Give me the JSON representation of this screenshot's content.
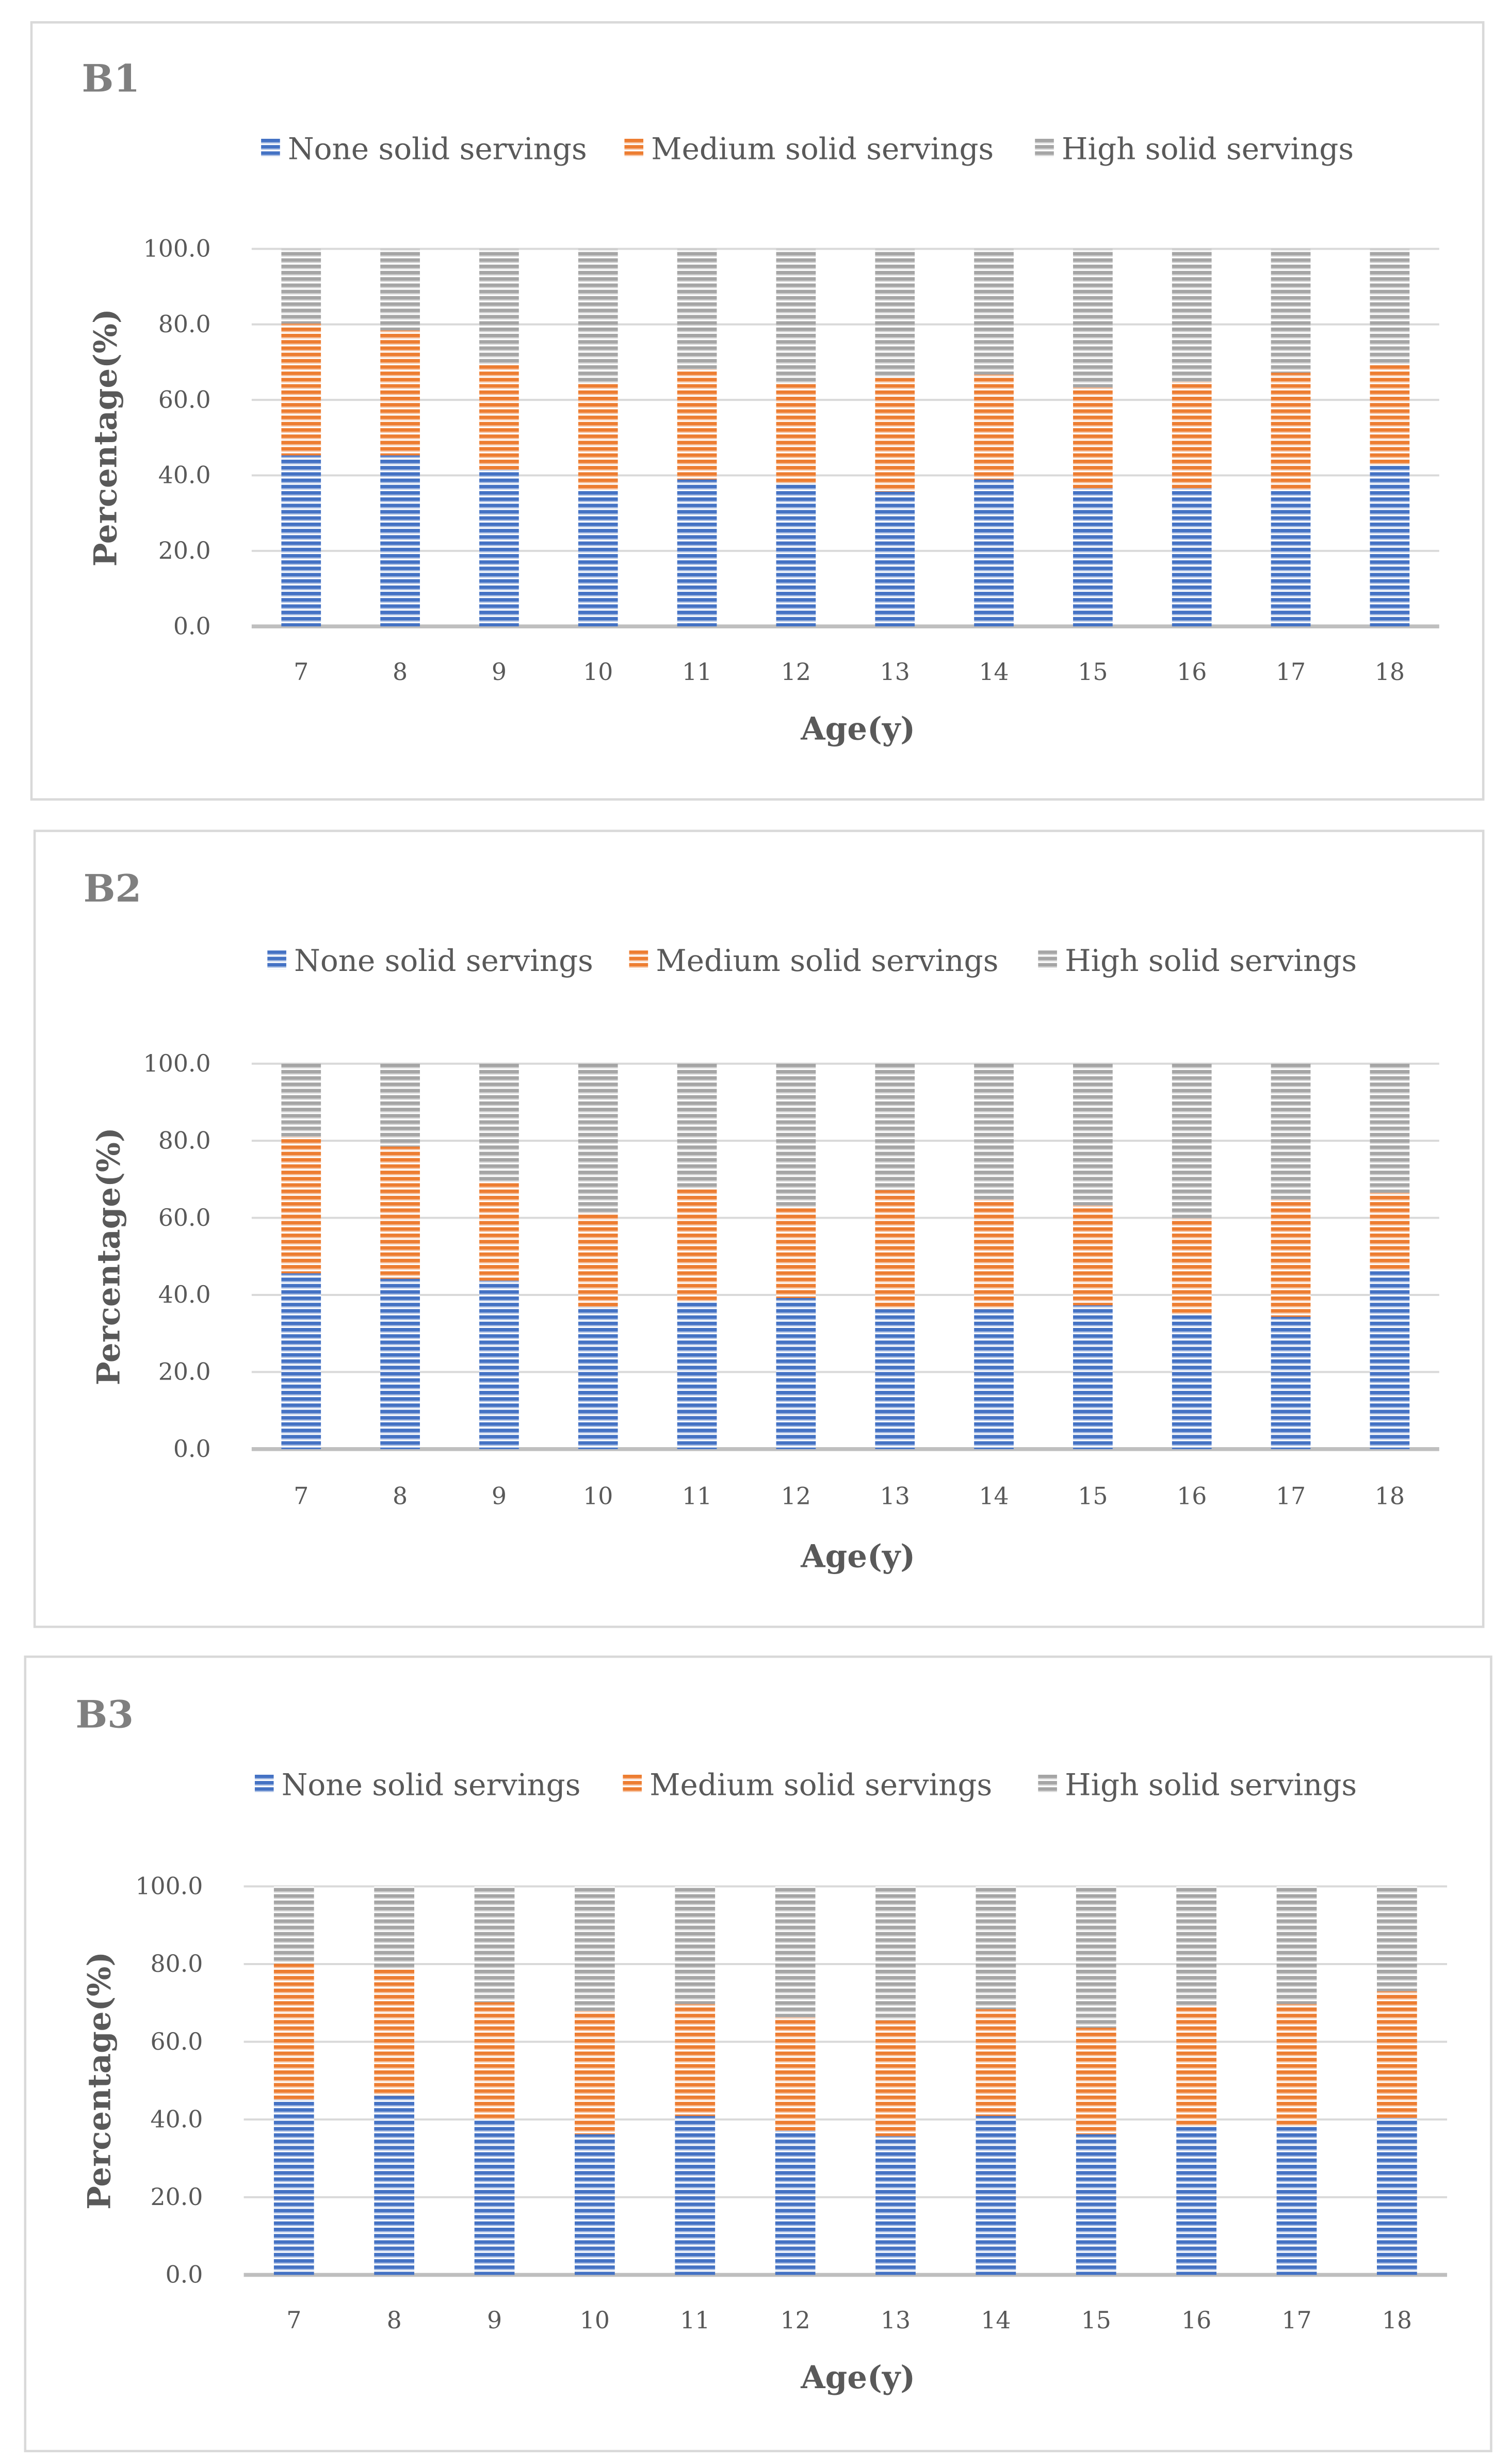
{
  "chart_data": [
    {
      "type": "bar",
      "stacked": true,
      "title": "B1",
      "xlabel": "Age(y)",
      "ylabel": "Percentage(%)",
      "ylim": [
        0,
        100
      ],
      "yticks": [
        "0.0",
        "20.0",
        "40.0",
        "60.0",
        "80.0",
        "100.0"
      ],
      "grid": true,
      "legend": "top",
      "categories": [
        "7",
        "8",
        "9",
        "10",
        "11",
        "12",
        "13",
        "14",
        "15",
        "16",
        "17",
        "18"
      ],
      "series": [
        {
          "name": "None solid servings",
          "color": "#4472c4",
          "values": [
            45.3,
            45.3,
            41.5,
            36.1,
            38.9,
            38.0,
            35.7,
            38.9,
            36.6,
            36.6,
            36.1,
            42.9
          ]
        },
        {
          "name": "Medium solid servings",
          "color": "#ed7d31",
          "values": [
            34.9,
            33.1,
            28.0,
            28.2,
            29.2,
            26.3,
            30.1,
            27.8,
            26.7,
            28.2,
            31.1,
            26.6
          ]
        },
        {
          "name": "High solid servings",
          "color": "#a5a5a5",
          "values": [
            19.8,
            21.6,
            30.5,
            35.7,
            31.9,
            35.7,
            34.2,
            33.3,
            36.7,
            35.2,
            32.8,
            30.5
          ]
        }
      ]
    },
    {
      "type": "bar",
      "stacked": true,
      "title": "B2",
      "xlabel": "Age(y)",
      "ylabel": "Percentage(%)",
      "ylim": [
        0,
        100
      ],
      "yticks": [
        "0.0",
        "20.0",
        "40.0",
        "60.0",
        "80.0",
        "100.0"
      ],
      "grid": true,
      "legend": "top",
      "categories": [
        "7",
        "8",
        "9",
        "10",
        "11",
        "12",
        "13",
        "14",
        "15",
        "16",
        "17",
        "18"
      ],
      "series": [
        {
          "name": "None solid servings",
          "color": "#4472c4",
          "values": [
            45.6,
            44.2,
            43.7,
            36.9,
            38.3,
            39.2,
            36.3,
            36.3,
            37.3,
            34.9,
            34.3,
            46.6
          ]
        },
        {
          "name": "Medium solid servings",
          "color": "#ed7d31",
          "values": [
            35.4,
            34.3,
            25.5,
            24.4,
            29.2,
            23.6,
            30.9,
            28.4,
            25.9,
            24.9,
            30.4,
            19.9
          ]
        },
        {
          "name": "High solid servings",
          "color": "#a5a5a5",
          "values": [
            19.0,
            21.5,
            30.8,
            38.7,
            32.5,
            37.2,
            32.8,
            35.3,
            36.8,
            40.2,
            35.3,
            33.5
          ]
        }
      ]
    },
    {
      "type": "bar",
      "stacked": true,
      "title": "B3",
      "xlabel": "Age(y)",
      "ylabel": "Percentage(%)",
      "ylim": [
        0,
        100
      ],
      "yticks": [
        "0.0",
        "20.0",
        "40.0",
        "60.0",
        "80.0",
        "100.0"
      ],
      "grid": true,
      "legend": "top",
      "categories": [
        "7",
        "8",
        "9",
        "10",
        "11",
        "12",
        "13",
        "14",
        "15",
        "16",
        "17",
        "18"
      ],
      "series": [
        {
          "name": "None solid servings",
          "color": "#4472c4",
          "values": [
            45.1,
            46.1,
            39.9,
            36.2,
            40.9,
            37.1,
            35.7,
            40.9,
            36.2,
            38.1,
            38.1,
            40.4
          ]
        },
        {
          "name": "Medium solid servings",
          "color": "#ed7d31",
          "values": [
            35.0,
            32.6,
            30.3,
            31.7,
            28.8,
            29.2,
            29.8,
            27.5,
            27.4,
            31.2,
            31.6,
            32.6
          ]
        },
        {
          "name": "High solid servings",
          "color": "#a5a5a5",
          "values": [
            19.9,
            21.3,
            29.8,
            32.1,
            30.3,
            33.7,
            34.5,
            31.6,
            36.4,
            30.7,
            30.3,
            27.0
          ]
        }
      ]
    }
  ]
}
